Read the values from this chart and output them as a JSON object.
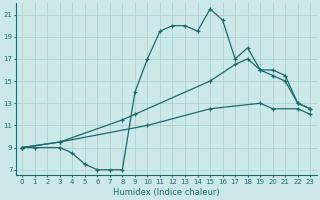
{
  "xlabel": "Humidex (Indice chaleur)",
  "xlim": [
    -0.5,
    23.5
  ],
  "ylim": [
    6.5,
    22
  ],
  "yticks": [
    7,
    9,
    11,
    13,
    15,
    17,
    19,
    21
  ],
  "xticks": [
    0,
    1,
    2,
    3,
    4,
    5,
    6,
    7,
    8,
    9,
    10,
    11,
    12,
    13,
    14,
    15,
    16,
    17,
    18,
    19,
    20,
    21,
    22,
    23
  ],
  "bg_color": "#cde8e8",
  "grid_color": "#b0d0d0",
  "line_color": "#1a6b6b",
  "line1_x": [
    0,
    1,
    3,
    4,
    5,
    6,
    7,
    8,
    9,
    10,
    11,
    12,
    13,
    14,
    15,
    16,
    17,
    18,
    19,
    20,
    21,
    22,
    23
  ],
  "line1_y": [
    9,
    9,
    9,
    8.5,
    7.5,
    7,
    7,
    7,
    14,
    17,
    19.5,
    20,
    20,
    19.5,
    21.5,
    20.5,
    17,
    18,
    16,
    15.5,
    15,
    13,
    12.5
  ],
  "line2_x": [
    0,
    3,
    8,
    9,
    15,
    17,
    18,
    19,
    20,
    21,
    22,
    23
  ],
  "line2_y": [
    9,
    9.5,
    11.5,
    12,
    15,
    16.5,
    17,
    16,
    16,
    15.5,
    13,
    12.5
  ],
  "line3_x": [
    0,
    3,
    10,
    15,
    19,
    20,
    22,
    23
  ],
  "line3_y": [
    9,
    9.5,
    11,
    12.5,
    13,
    12.5,
    12.5,
    12
  ]
}
